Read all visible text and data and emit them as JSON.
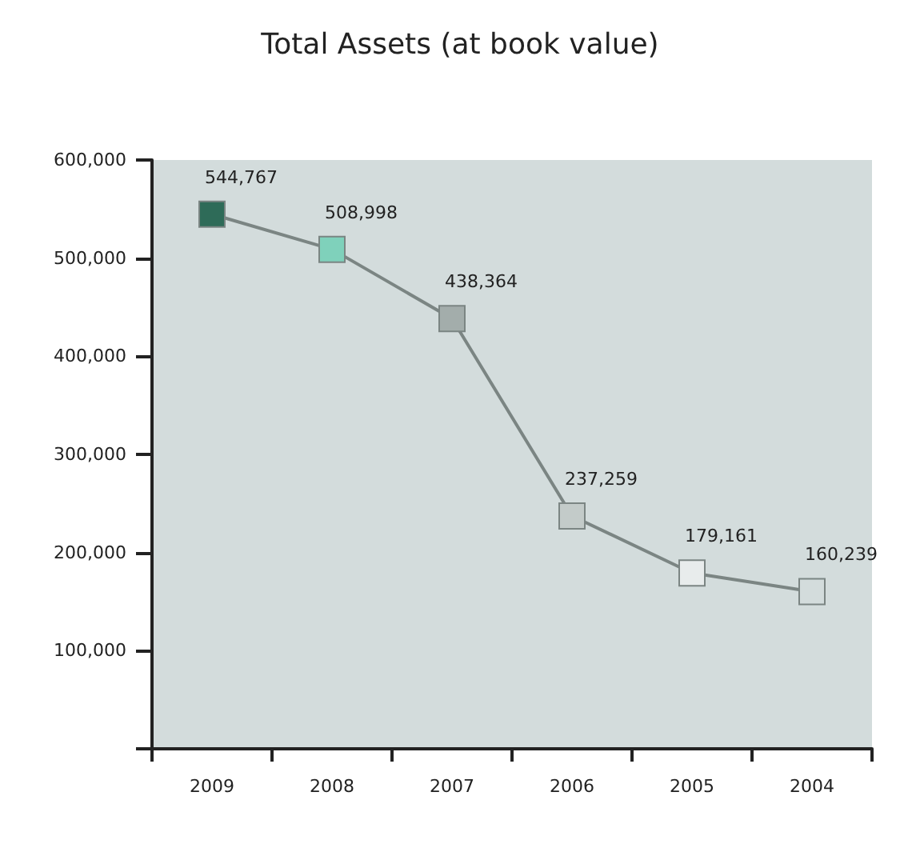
{
  "chart_data": {
    "type": "line",
    "title": "Total Assets (at book value)",
    "categories": [
      "2009",
      "2008",
      "2007",
      "2006",
      "2005",
      "2004"
    ],
    "series": [
      {
        "color": "#7b8583",
        "values": [
          544767,
          508998,
          438364,
          237259,
          179161,
          160239
        ],
        "value_labels": [
          "544,767",
          "508,998",
          "438,364",
          "237,259",
          "179,161",
          "160,239"
        ],
        "colors": [
          "#2e6b58",
          "#7fd1bb",
          "#a3adab",
          "#c3cbc9",
          "#e8ecec",
          "#d3dcdc"
        ]
      }
    ],
    "ylim": [
      0,
      600000
    ],
    "yticks": [
      {
        "value": 0,
        "label": null
      },
      {
        "value": 100000,
        "label": "100,000"
      },
      {
        "value": 200000,
        "label": "200,000"
      },
      {
        "value": 300000,
        "label": "300,000"
      },
      {
        "value": 400000,
        "label": "400,000"
      },
      {
        "value": 500000,
        "label": "500,000"
      },
      {
        "value": 600000,
        "label": "600,000"
      }
    ],
    "grid": false,
    "marker": "square",
    "line_style": "solid"
  }
}
